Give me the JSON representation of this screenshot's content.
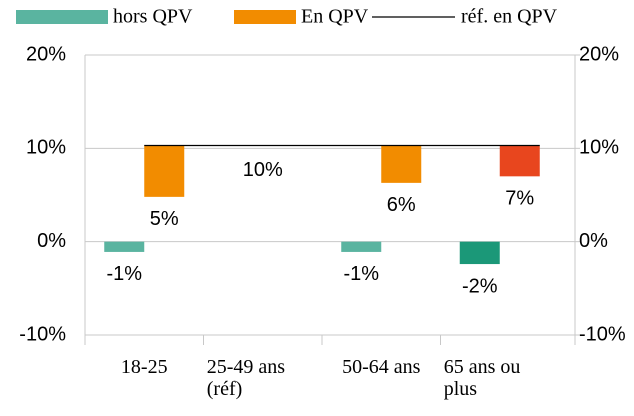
{
  "chart_data": {
    "type": "bar",
    "legend": "top",
    "grid": true,
    "categories": [
      "18-25",
      "25-49 ans (réf)",
      "50-64 ans",
      "65 ans ou plus"
    ],
    "series": [
      {
        "name": "hors QPV",
        "color": "#5ab4a0",
        "colors": [
          "#5ab4a0",
          "#5ab4a0",
          "#5ab4a0",
          "#1b9878"
        ],
        "values": [
          -1.1,
          null,
          -1.1,
          -2.4
        ],
        "value_labels": [
          "-1%",
          null,
          "-1%",
          "-2%"
        ]
      },
      {
        "name": "En QPV",
        "color": "#f28c00",
        "colors": [
          "#f28c00",
          "#f28c00",
          "#f28c00",
          "#e8461e"
        ],
        "values": [
          4.8,
          null,
          6.3,
          7.0
        ],
        "value_labels": [
          "5%",
          null,
          "6%",
          "7%"
        ]
      },
      {
        "name": "réf. en QPV",
        "color": "#000000",
        "type": "line",
        "values": [
          10.3,
          10.3,
          10.3,
          10.3
        ],
        "value_labels": [
          null,
          "10%",
          null,
          null
        ]
      }
    ],
    "ylim": [
      -10,
      20
    ],
    "yticks": [
      {
        "value": -10,
        "label": "-10%"
      },
      {
        "value": 0,
        "label": "0%"
      },
      {
        "value": 10,
        "label": "10%"
      },
      {
        "value": 20,
        "label": "20%"
      }
    ],
    "y2lim": [
      -10,
      20
    ],
    "y2ticks": [
      {
        "value": -10,
        "label": "-10%"
      },
      {
        "value": 0,
        "label": "0%"
      },
      {
        "value": 10,
        "label": "10%"
      },
      {
        "value": 20,
        "label": "20%"
      }
    ]
  }
}
